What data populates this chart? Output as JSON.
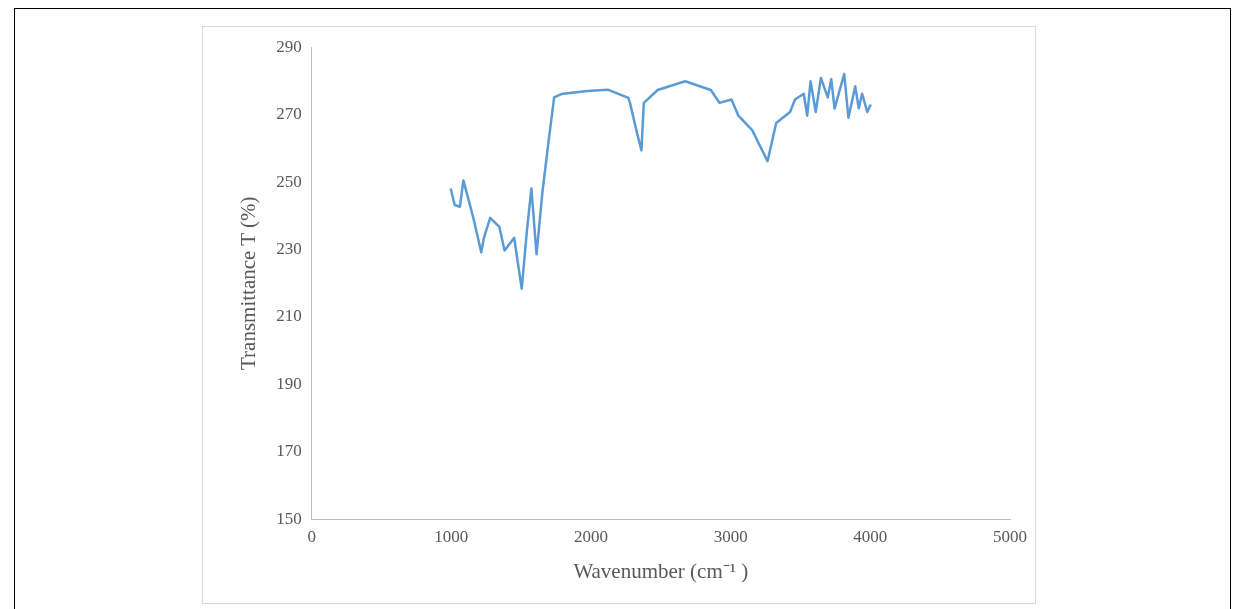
{
  "chart_data": {
    "type": "line",
    "xlabel": "Wavenumber (cm⁻¹ )",
    "ylabel": "Transmittance T (%)",
    "xlim": [
      0,
      5000
    ],
    "xticks": [
      0,
      1000,
      2000,
      3000,
      4000,
      5000
    ],
    "ylim": [
      150,
      290
    ],
    "yticks": [
      150,
      170,
      190,
      210,
      230,
      250,
      270,
      290
    ],
    "grid": false,
    "legend": false,
    "marker": "none",
    "line_style": "solid",
    "series": [
      {
        "color": "#5b9bd5",
        "x": [
          995,
          1024,
          1061,
          1086,
          1123,
          1160,
          1214,
          1233,
          1278,
          1344,
          1381,
          1450,
          1467,
          1504,
          1541,
          1573,
          1610,
          1652,
          1696,
          1736,
          1787,
          1972,
          2120,
          2267,
          2279,
          2329,
          2361,
          2378,
          2477,
          2674,
          2858,
          2920,
          3006,
          3055,
          3154,
          3264,
          3326,
          3425,
          3461,
          3523,
          3548,
          3572,
          3609,
          3646,
          3695,
          3720,
          3744,
          3813,
          3843,
          3892,
          3917,
          3941,
          3978,
          4003
        ],
        "values": [
          248.1,
          243.2,
          242.7,
          250.5,
          244.8,
          238.9,
          229.2,
          233.5,
          239.4,
          236.7,
          229.7,
          233.5,
          228.6,
          218.4,
          235.6,
          248.1,
          228.6,
          247.0,
          262.1,
          275.1,
          276.1,
          277.0,
          277.4,
          275.0,
          273.5,
          264.6,
          259.4,
          273.5,
          277.3,
          279.9,
          277.3,
          273.5,
          274.5,
          269.7,
          265.4,
          256.2,
          267.5,
          270.8,
          274.5,
          276.2,
          269.7,
          279.9,
          270.8,
          280.9,
          275.1,
          280.5,
          271.8,
          282.1,
          269.1,
          278.4,
          271.9,
          276.2,
          270.8,
          273.0
        ]
      }
    ]
  }
}
